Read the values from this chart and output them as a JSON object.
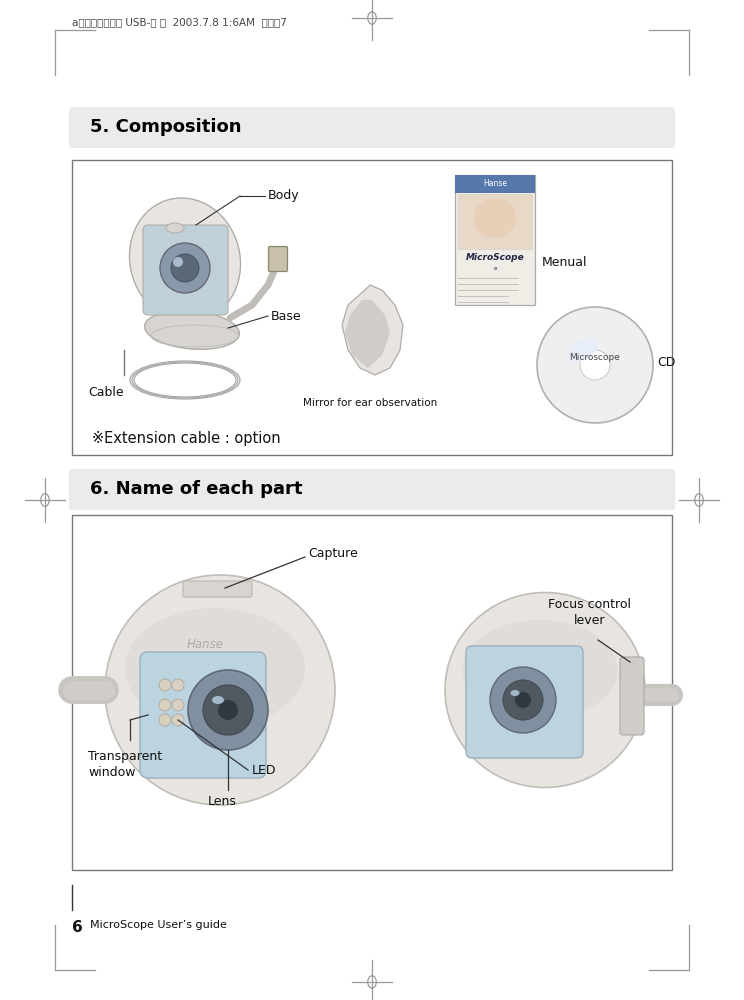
{
  "header_text": "a마이크로스코프 USB-영 문  2003.7.8 1:6AM  페이지7",
  "section1_title": "5. Composition",
  "section2_title": "6. Name of each part",
  "footer_text": "MicroScope User’s guide",
  "footer_num": "6",
  "ext_cable_text": "※Extension cable : option",
  "bg_color": "#ffffff",
  "section_bg": "#ebebeb",
  "text_color": "#111111",
  "gray_device": "#d8d5d0",
  "gray_dark": "#b0ada8",
  "gray_light": "#e8e5e0",
  "blue_lens": "#a8c8d8",
  "cd_color": "#e8e8e8",
  "manual_blue": "#5577aa",
  "manual_skin": "#e8d8c8"
}
